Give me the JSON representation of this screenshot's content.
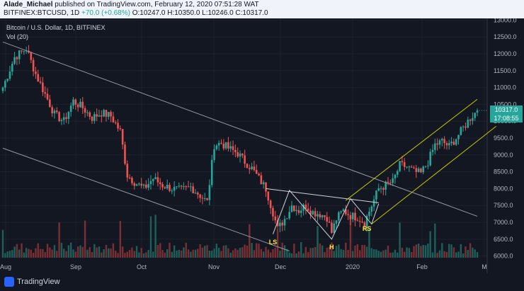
{
  "header": {
    "author": "Alade_Michael",
    "published_text": "published on TradingView.com, February 12, 2020 07:51:28 WAT",
    "symbol": "BITFINEX:BTCUSD, 1D",
    "change": "+70.0 (+0.68%)",
    "ohlc": "O:10247.0 H:10350.0 L:10246.0 C:10317.0"
  },
  "legend": {
    "title": "Bitcoin / U.S. Dollar, 1D, BITFINEX",
    "volume": "Vol (20)"
  },
  "price_badge": {
    "price": "10317.0",
    "countdown": "17:08:55",
    "color": "#26a69a"
  },
  "annotations": {
    "ls": "LS",
    "h": "H",
    "rs": "RS",
    "color": "#ffeb3b"
  },
  "footer": {
    "brand": "TradingView"
  },
  "colors": {
    "up": "#26a69a",
    "down": "#ef5350",
    "background": "#131722",
    "channel": "#c8c800",
    "trend": "#9598a1"
  },
  "chart_data": {
    "type": "candlestick",
    "title": "Bitcoin / U.S. Dollar, 1D, BITFINEX",
    "ylim": [
      5950,
      13050
    ],
    "y_ticks": [
      "13000.0",
      "12500.0",
      "12000.0",
      "11500.0",
      "11000.0",
      "10500.0",
      "10000.0",
      "9500.0",
      "9000.0",
      "8500.0",
      "8000.0",
      "7500.0",
      "7000.0",
      "6500.0",
      "6000.0"
    ],
    "x_ticks": [
      "Aug",
      "Sep",
      "Oct",
      "Nov",
      "Dec",
      "2020",
      "Feb",
      "M"
    ],
    "close_path": [
      [
        0,
        11000
      ],
      [
        5,
        11900
      ],
      [
        10,
        12150
      ],
      [
        14,
        11400
      ],
      [
        18,
        10800
      ],
      [
        22,
        10200
      ],
      [
        26,
        10000
      ],
      [
        30,
        10600
      ],
      [
        34,
        10400
      ],
      [
        38,
        10100
      ],
      [
        42,
        10250
      ],
      [
        46,
        10150
      ],
      [
        50,
        9700
      ],
      [
        53,
        8400
      ],
      [
        56,
        8200
      ],
      [
        60,
        8000
      ],
      [
        64,
        8300
      ],
      [
        68,
        8100
      ],
      [
        72,
        8000
      ],
      [
        76,
        7950
      ],
      [
        80,
        8050
      ],
      [
        84,
        7800
      ],
      [
        87,
        7600
      ],
      [
        90,
        9300
      ],
      [
        93,
        9350
      ],
      [
        96,
        9200
      ],
      [
        100,
        9050
      ],
      [
        103,
        8800
      ],
      [
        106,
        8600
      ],
      [
        109,
        8300
      ],
      [
        112,
        8000
      ],
      [
        115,
        7300
      ],
      [
        117,
        6800
      ],
      [
        120,
        7100
      ],
      [
        123,
        7500
      ],
      [
        126,
        7350
      ],
      [
        129,
        7500
      ],
      [
        132,
        7300
      ],
      [
        135,
        7250
      ],
      [
        138,
        7150
      ],
      [
        140,
        6700
      ],
      [
        142,
        7100
      ],
      [
        145,
        7350
      ],
      [
        148,
        7200
      ],
      [
        151,
        7150
      ],
      [
        154,
        7000
      ],
      [
        157,
        7500
      ],
      [
        160,
        8000
      ],
      [
        163,
        8100
      ],
      [
        166,
        8200
      ],
      [
        169,
        8700
      ],
      [
        172,
        8650
      ],
      [
        175,
        8500
      ],
      [
        178,
        8450
      ],
      [
        181,
        8800
      ],
      [
        184,
        9300
      ],
      [
        187,
        9400
      ],
      [
        190,
        9250
      ],
      [
        193,
        9500
      ],
      [
        196,
        9800
      ],
      [
        199,
        10100
      ],
      [
        202,
        10317
      ]
    ],
    "legend_position": "top-left"
  }
}
